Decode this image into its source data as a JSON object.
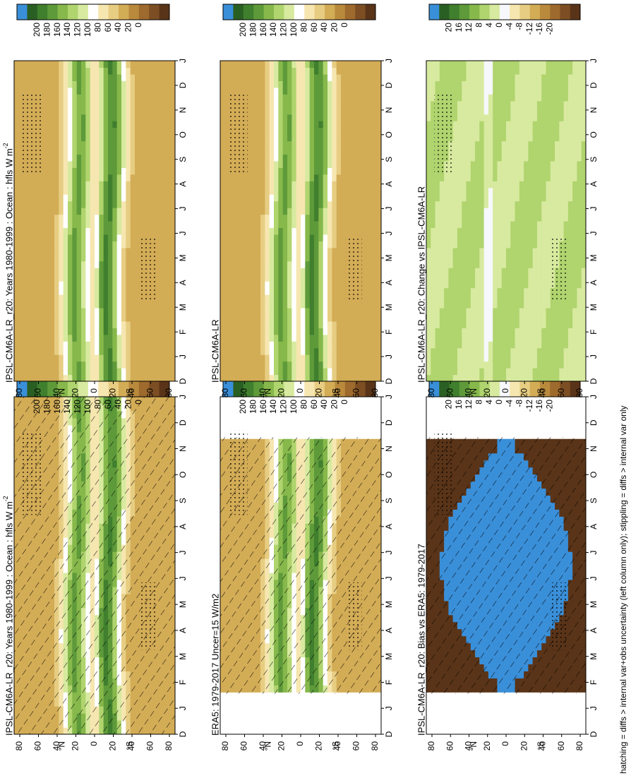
{
  "figure": {
    "footnote": "hatching = diffs > internal var+obs uncertainty (left column only); stippling = diffs > internal var only"
  },
  "chart_data": [
    {
      "type": "heatmap",
      "id": "p_tl",
      "title": "IPSL-CM6A-LR_r20: Years 1980-1999 : Ocean : hfls W m",
      "title_sup": "-2",
      "x": [
        "D",
        "J",
        "F",
        "M",
        "A",
        "M",
        "J",
        "J",
        "A",
        "S",
        "O",
        "N",
        "D",
        "J"
      ],
      "y_ticks": [
        "80",
        "60",
        "40",
        "20",
        "0",
        "20",
        "40",
        "60",
        "80"
      ],
      "y_markers": [
        "°N",
        "°S"
      ],
      "colorbar": {
        "levels": [
          "200",
          "180",
          "160",
          "140",
          "120",
          "100",
          "80",
          "60",
          "40",
          "20",
          "0"
        ]
      },
      "hatching": true,
      "stippling": true
    },
    {
      "type": "heatmap",
      "id": "p_tr",
      "title": "IPSL-CM6A-LR_r20: Years 1980-1999 : Ocean : hfls W m",
      "title_sup": "-2",
      "x": [
        "D",
        "J",
        "F",
        "M",
        "A",
        "M",
        "J",
        "J",
        "A",
        "S",
        "O",
        "N",
        "D",
        "J"
      ],
      "y_ticks": [
        "80",
        "60",
        "40",
        "20",
        "0",
        "20",
        "40",
        "60",
        "80"
      ],
      "y_markers": [
        "°N",
        "°S"
      ],
      "colorbar": {
        "levels": [
          "200",
          "180",
          "160",
          "140",
          "120",
          "100",
          "80",
          "60",
          "40",
          "20",
          "0"
        ]
      },
      "hatching": false,
      "stippling": true
    },
    {
      "type": "heatmap",
      "id": "p_ml",
      "title": "ERA5: 1979-2017 Uncer=15 W/m2",
      "x": [
        "D",
        "J",
        "F",
        "M",
        "A",
        "M",
        "J",
        "J",
        "A",
        "S",
        "O",
        "N",
        "D",
        "J"
      ],
      "y_ticks": [
        "80",
        "60",
        "40",
        "20",
        "0",
        "20",
        "40",
        "60",
        "80"
      ],
      "y_markers": [
        "°N",
        "°S"
      ],
      "colorbar": {
        "levels": [
          "200",
          "180",
          "160",
          "140",
          "120",
          "100",
          "80",
          "60",
          "40",
          "20",
          "0"
        ]
      },
      "hatching": true,
      "stippling": true
    },
    {
      "type": "heatmap",
      "id": "p_mr",
      "title": "IPSL-CM6A-LR",
      "x": [
        "D",
        "J",
        "F",
        "M",
        "A",
        "M",
        "J",
        "J",
        "A",
        "S",
        "O",
        "N",
        "D",
        "J"
      ],
      "y_ticks": [
        "80",
        "60",
        "40",
        "20",
        "0",
        "20",
        "40",
        "60",
        "80"
      ],
      "y_markers": [
        "°N",
        "°S"
      ],
      "colorbar": {
        "levels": [
          "200",
          "180",
          "160",
          "140",
          "120",
          "100",
          "80",
          "60",
          "40",
          "20",
          "0"
        ]
      },
      "hatching": false,
      "stippling": true
    },
    {
      "type": "heatmap",
      "id": "p_bl",
      "title": "IPSL-CM6A-LR_r20: Bias vs ERA5: 1979-2017",
      "x": [
        "D",
        "J",
        "F",
        "M",
        "A",
        "M",
        "J",
        "J",
        "A",
        "S",
        "O",
        "N",
        "D",
        "J"
      ],
      "y_ticks": [
        "80",
        "60",
        "40",
        "20",
        "0",
        "20",
        "40",
        "60",
        "80"
      ],
      "y_markers": [
        "°N",
        "°S"
      ],
      "colorbar": {
        "levels": [
          "20",
          "16",
          "12",
          "8",
          "4",
          "0",
          "-4",
          "-8",
          "-12",
          "-16",
          "-20"
        ]
      },
      "hatching": true,
      "stippling": true
    },
    {
      "type": "heatmap",
      "id": "p_br",
      "title": "IPSL-CM6A-LR_r20: Change vs IPSL-CM6A-LR",
      "x": [
        "D",
        "J",
        "F",
        "M",
        "A",
        "M",
        "J",
        "J",
        "A",
        "S",
        "O",
        "N",
        "D",
        "J"
      ],
      "y_ticks": [
        "80",
        "60",
        "40",
        "20",
        "0",
        "20",
        "40",
        "60",
        "80"
      ],
      "y_markers": [
        "°N",
        "°S"
      ],
      "colorbar": {
        "levels": [
          "20",
          "16",
          "12",
          "8",
          "4",
          "0",
          "-4",
          "-8",
          "-12",
          "-16",
          "-20"
        ]
      },
      "hatching": false,
      "stippling": true
    }
  ],
  "colors": {
    "abs_scale": [
      "#3a8fd9",
      "#2a5f24",
      "#3f7f2e",
      "#5e9a3a",
      "#86b84b",
      "#b0d46e",
      "#d7ea9f",
      "#ffffff",
      "#f6e6b0",
      "#e7cd82",
      "#d3ac56",
      "#b98a3c",
      "#9e6a2d",
      "#7d4e23",
      "#5a3418"
    ],
    "bias_scale": [
      "#3a8fd9",
      "#2a5f24",
      "#3f7f2e",
      "#5e9a3a",
      "#86b84b",
      "#b0d46e",
      "#d7ea9f",
      "#f6f8fd",
      "#f6e6b0",
      "#e7cd82",
      "#d3ac56",
      "#b98a3c",
      "#9e6a2d",
      "#7d4e23",
      "#5a3418"
    ]
  }
}
